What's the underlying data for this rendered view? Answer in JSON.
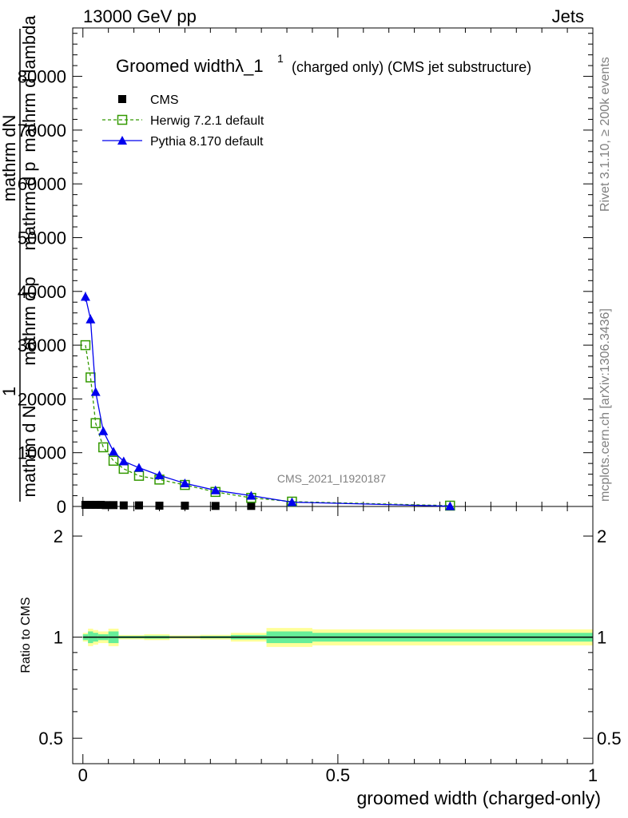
{
  "header": {
    "left": "13000 GeV pp",
    "right": "Jets"
  },
  "side_labels": {
    "rivet": "Rivet 3.1.10, ≥ 200k events",
    "mcplots": "mcplots.cern.ch [arXiv:1306.3436]"
  },
  "analysis_id": "CMS_2021_I1920187",
  "chart_data": {
    "type": "line",
    "title": "Groomed widthλ_1",
    "title_sup": "1",
    "title_suffix": "(charged only) (CMS jet substructure)",
    "xlabel": "groomed width (charged-only)",
    "ylabel_parts": [
      "1",
      "mathrm d N",
      "mathrm dN",
      "mathrm d p",
      "mathrm d p",
      "mathrm d lambda"
    ],
    "xlim": [
      -0.02,
      1.0
    ],
    "ylim": [
      0,
      89000
    ],
    "x_ticks": [
      0,
      0.5,
      1
    ],
    "x_tick_labels": [
      "0",
      "0.5",
      "1"
    ],
    "y_ticks": [
      0,
      10000,
      20000,
      30000,
      40000,
      50000,
      60000,
      70000,
      80000
    ],
    "y_tick_labels": [
      "0",
      "10000",
      "20000",
      "30000",
      "40000",
      "50000",
      "60000",
      "70000",
      "80000"
    ],
    "series": [
      {
        "name": "CMS",
        "color": "#000000",
        "marker": "square-filled",
        "x": [
          0.005,
          0.015,
          0.025,
          0.035,
          0.045,
          0.06,
          0.08,
          0.11,
          0.15,
          0.2,
          0.26,
          0.33
        ],
        "y": [
          300,
          300,
          300,
          300,
          250,
          250,
          200,
          200,
          150,
          150,
          100,
          100
        ]
      },
      {
        "name": "Herwig 7.2.1 default",
        "color": "#339900",
        "marker": "square-open",
        "x": [
          0.005,
          0.015,
          0.025,
          0.04,
          0.06,
          0.08,
          0.11,
          0.15,
          0.2,
          0.26,
          0.33,
          0.41,
          0.72
        ],
        "y": [
          30000,
          24000,
          15500,
          11000,
          8500,
          7000,
          5700,
          5000,
          4000,
          2700,
          1600,
          900,
          150
        ]
      },
      {
        "name": "Pythia 8.170 default",
        "color": "#0000ee",
        "marker": "triangle-filled",
        "x": [
          0.005,
          0.015,
          0.025,
          0.04,
          0.06,
          0.08,
          0.11,
          0.15,
          0.2,
          0.26,
          0.33,
          0.41,
          0.72
        ],
        "y": [
          39000,
          34800,
          21300,
          14000,
          10200,
          8400,
          7200,
          5800,
          4300,
          3000,
          2000,
          800,
          50
        ]
      }
    ],
    "ratio": {
      "ylabel": "Ratio to CMS",
      "ylim": [
        0.42,
        2.45
      ],
      "y_ticks": [
        0.5,
        1,
        2
      ],
      "y_tick_labels": [
        "0.5",
        "1",
        "2"
      ],
      "bands": [
        {
          "x0": 0.0,
          "x1": 0.01,
          "inner": 0.02,
          "outer": 0.03
        },
        {
          "x0": 0.01,
          "x1": 0.02,
          "inner": 0.04,
          "outer": 0.06
        },
        {
          "x0": 0.02,
          "x1": 0.03,
          "inner": 0.03,
          "outer": 0.05
        },
        {
          "x0": 0.03,
          "x1": 0.05,
          "inner": 0.02,
          "outer": 0.04
        },
        {
          "x0": 0.05,
          "x1": 0.07,
          "inner": 0.04,
          "outer": 0.06
        },
        {
          "x0": 0.07,
          "x1": 0.12,
          "inner": 0.008,
          "outer": 0.015
        },
        {
          "x0": 0.12,
          "x1": 0.17,
          "inner": 0.01,
          "outer": 0.02
        },
        {
          "x0": 0.17,
          "x1": 0.23,
          "inner": 0.006,
          "outer": 0.012
        },
        {
          "x0": 0.23,
          "x1": 0.29,
          "inner": 0.008,
          "outer": 0.016
        },
        {
          "x0": 0.29,
          "x1": 0.36,
          "inner": 0.015,
          "outer": 0.03
        },
        {
          "x0": 0.36,
          "x1": 0.45,
          "inner": 0.04,
          "outer": 0.065
        },
        {
          "x0": 0.45,
          "x1": 1.0,
          "inner": 0.03,
          "outer": 0.055
        }
      ]
    }
  }
}
